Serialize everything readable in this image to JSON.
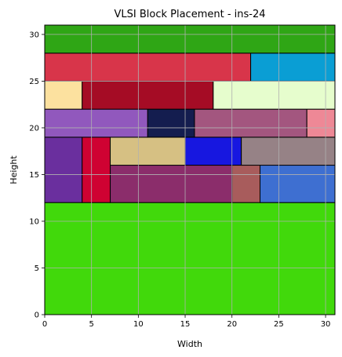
{
  "chart_data": {
    "type": "rectangles",
    "title": "VLSI Block Placement - ins-24",
    "xlabel": "Width",
    "ylabel": "Height",
    "xlim": [
      0,
      31
    ],
    "ylim": [
      0,
      31
    ],
    "xticks": [
      0,
      5,
      10,
      15,
      20,
      25,
      30
    ],
    "yticks": [
      0,
      5,
      10,
      15,
      20,
      25,
      30
    ],
    "grid": true,
    "blocks": [
      {
        "x": 0,
        "y": 0,
        "w": 31,
        "h": 12,
        "color": "#41d90b"
      },
      {
        "x": 0,
        "y": 12,
        "w": 4,
        "h": 7,
        "color": "#6a2f9e"
      },
      {
        "x": 4,
        "y": 12,
        "w": 3,
        "h": 7,
        "color": "#cf0232"
      },
      {
        "x": 7,
        "y": 12,
        "w": 13,
        "h": 4,
        "color": "#8b2d6b"
      },
      {
        "x": 20,
        "y": 12,
        "w": 3,
        "h": 4,
        "color": "#a85c5c"
      },
      {
        "x": 23,
        "y": 12,
        "w": 8,
        "h": 4,
        "color": "#3e6fd1"
      },
      {
        "x": 7,
        "y": 16,
        "w": 8,
        "h": 3,
        "color": "#d6c083"
      },
      {
        "x": 15,
        "y": 16,
        "w": 6,
        "h": 3,
        "color": "#1717e0"
      },
      {
        "x": 21,
        "y": 16,
        "w": 10,
        "h": 3,
        "color": "#968286"
      },
      {
        "x": 0,
        "y": 19,
        "w": 11,
        "h": 3,
        "color": "#9158bd"
      },
      {
        "x": 11,
        "y": 19,
        "w": 5,
        "h": 3,
        "color": "#141d4f"
      },
      {
        "x": 16,
        "y": 19,
        "w": 12,
        "h": 3,
        "color": "#a3567f"
      },
      {
        "x": 28,
        "y": 19,
        "w": 3,
        "h": 3,
        "color": "#ee8896"
      },
      {
        "x": 0,
        "y": 22,
        "w": 4,
        "h": 3,
        "color": "#fce19f"
      },
      {
        "x": 4,
        "y": 22,
        "w": 14,
        "h": 3,
        "color": "#a50c25"
      },
      {
        "x": 18,
        "y": 22,
        "w": 13,
        "h": 3,
        "color": "#e6fdcd"
      },
      {
        "x": 0,
        "y": 25,
        "w": 22,
        "h": 3,
        "color": "#d8354a"
      },
      {
        "x": 22,
        "y": 25,
        "w": 9,
        "h": 3,
        "color": "#0a9ed4"
      },
      {
        "x": 0,
        "y": 28,
        "w": 31,
        "h": 3,
        "color": "#2fa615"
      }
    ]
  }
}
